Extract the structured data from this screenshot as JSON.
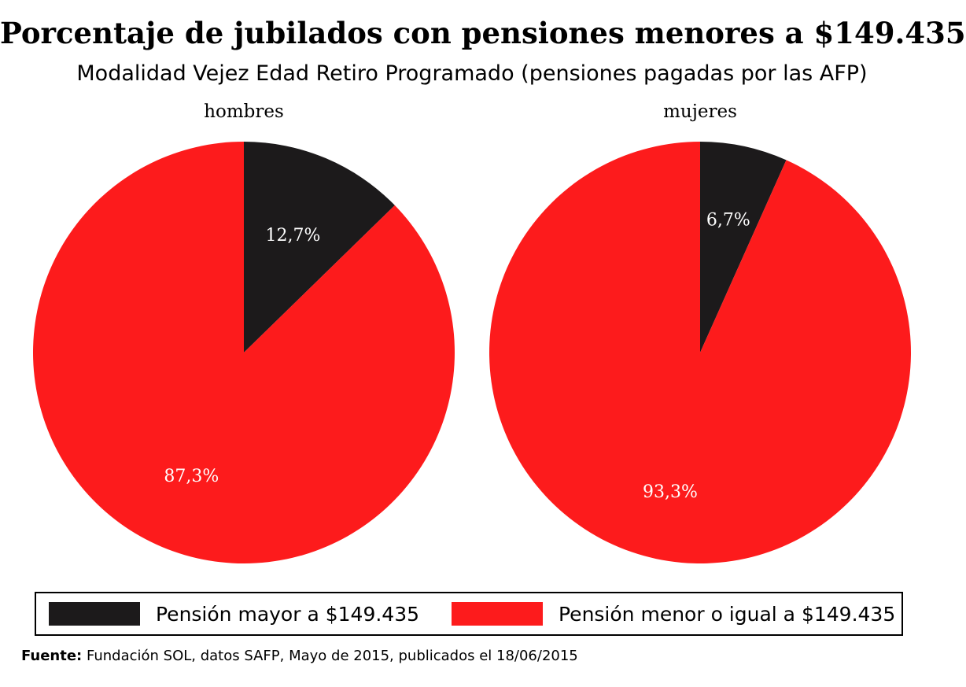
{
  "chart_data": {
    "type": "pie",
    "title": "Porcentaje de jubilados con pensiones menores a $149.435",
    "subtitle": "Modalidad Vejez Edad Retiro Programado (pensiones pagadas por las AFP)",
    "pies": [
      {
        "name": "hombres",
        "slices": [
          {
            "category": "Pensión mayor a $149.435",
            "value": 12.7,
            "label": "12,7%"
          },
          {
            "category": "Pensión menor o igual a $149.435",
            "value": 87.3,
            "label": "87,3%"
          }
        ]
      },
      {
        "name": "mujeres",
        "slices": [
          {
            "category": "Pensión mayor a $149.435",
            "value": 6.7,
            "label": "6,7%"
          },
          {
            "category": "Pensión menor o igual a $149.435",
            "value": 93.3,
            "label": "93,3%"
          }
        ]
      }
    ],
    "legend": {
      "placement": "bottom",
      "entries": [
        {
          "label": "Pensión mayor a $149.435",
          "color": "#1c1a1b"
        },
        {
          "label": "Pensión menor o igual a $149.435",
          "color": "#fd1b1c"
        }
      ]
    },
    "colors": [
      "#1c1a1b",
      "#fd1b1c"
    ]
  },
  "footer": {
    "source_label": "Fuente:",
    "source_text": " Fundación SOL, datos SAFP, Mayo de 2015, publicados el 18/06/2015"
  }
}
